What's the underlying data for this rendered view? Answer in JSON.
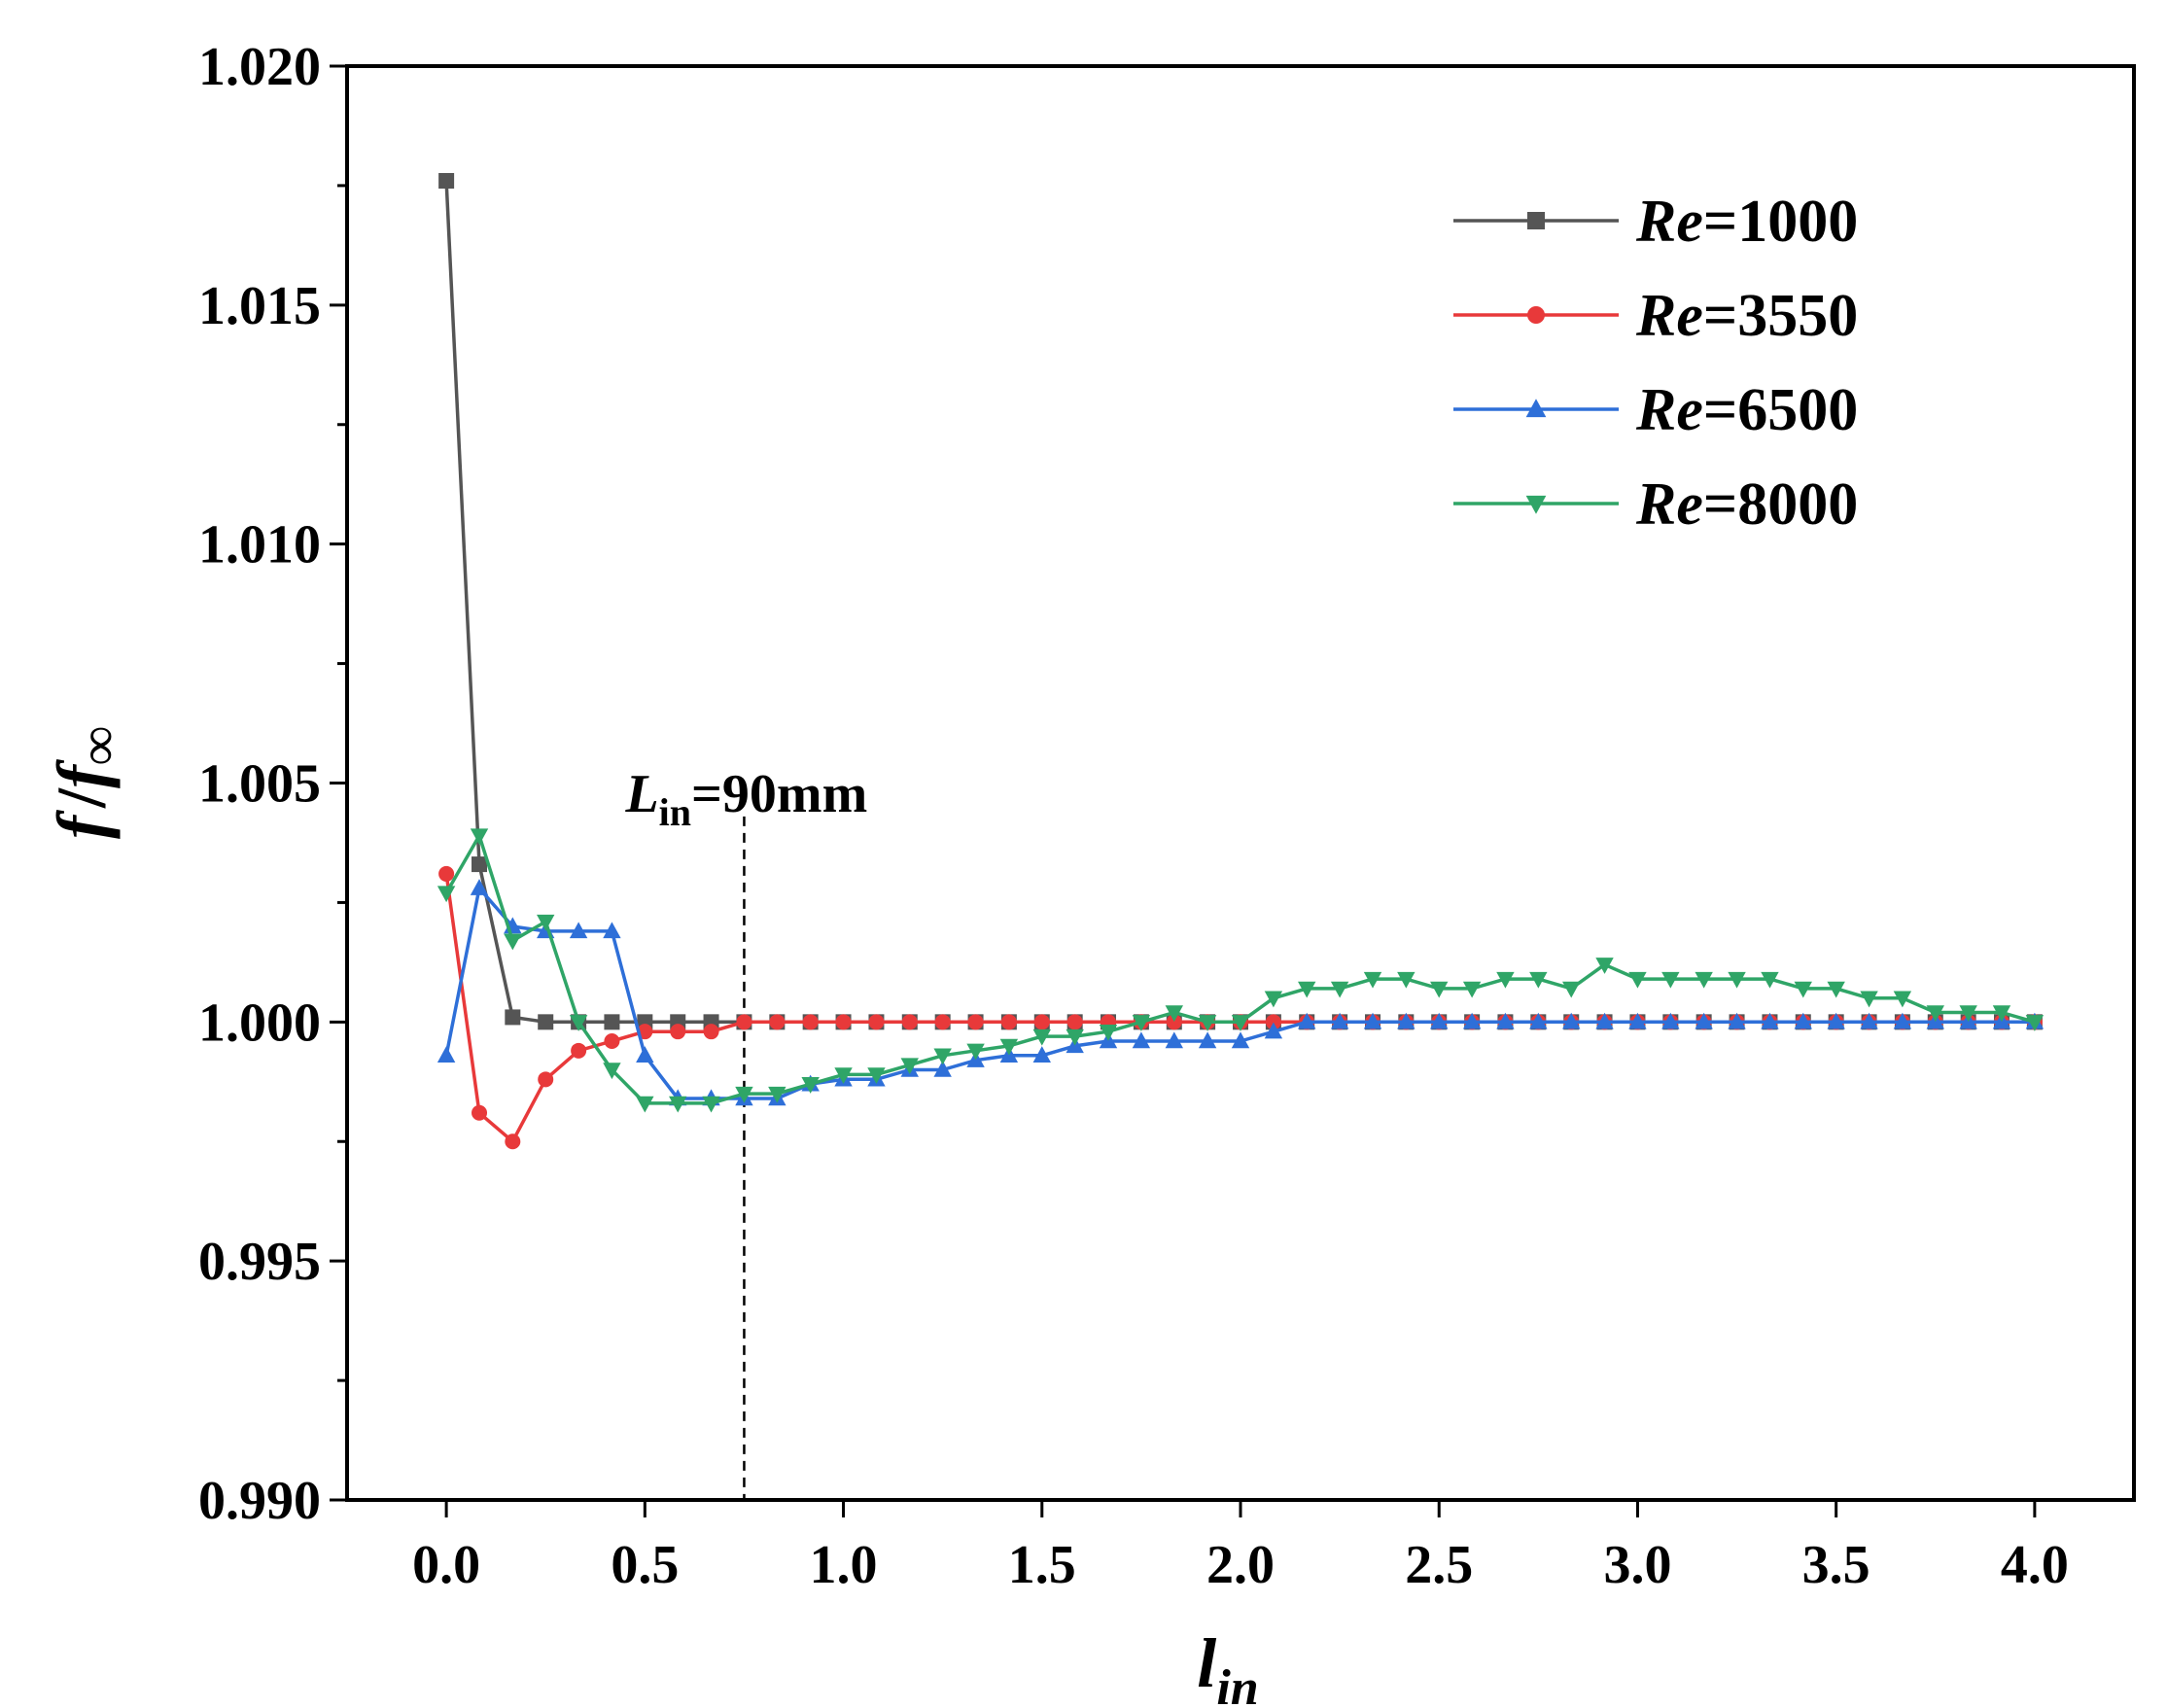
{
  "chart_data": {
    "type": "line",
    "xlabel": "l",
    "xlabel_sub": "in",
    "ylabel_f": "f",
    "ylabel_slash": "/",
    "ylabel_finf": "f",
    "ylabel_inf": "∞",
    "xlim": [
      -0.25,
      4.25
    ],
    "ylim": [
      0.99,
      1.02
    ],
    "x_ticks": [
      0.0,
      0.5,
      1.0,
      1.5,
      2.0,
      2.5,
      3.0,
      3.5,
      4.0
    ],
    "x_tick_labels": [
      "0.0",
      "0.5",
      "1.0",
      "1.5",
      "2.0",
      "2.5",
      "3.0",
      "3.5",
      "4.0"
    ],
    "y_ticks": [
      0.99,
      0.995,
      1.0,
      1.005,
      1.01,
      1.015,
      1.02
    ],
    "y_tick_labels": [
      "0.990",
      "0.995",
      "1.000",
      "1.005",
      "1.010",
      "1.015",
      "1.020"
    ],
    "y_minor_ticks": [
      0.9925,
      0.9975,
      1.0025,
      1.0075,
      1.0125,
      1.0175
    ],
    "legend_position": "top-right",
    "annotation": {
      "L": "L",
      "sub": "in",
      "rest": "=90mm",
      "x": 0.75
    },
    "series": [
      {
        "name": "Re=1000",
        "name_italic": "Re",
        "name_rest": "=1000",
        "color": "#555555",
        "marker": "square",
        "x": [
          0,
          0.083,
          0.167,
          0.25,
          0.333,
          0.417,
          0.5,
          0.583,
          0.667,
          0.75,
          0.833,
          0.917,
          1.0,
          1.083,
          1.167,
          1.25,
          1.333,
          1.417,
          1.5,
          1.583,
          1.667,
          1.75,
          1.833,
          1.917,
          2.0,
          2.083,
          2.167,
          2.25,
          2.333,
          2.417,
          2.5,
          2.583,
          2.667,
          2.75,
          2.833,
          2.917,
          3.0,
          3.083,
          3.167,
          3.25,
          3.333,
          3.417,
          3.5,
          3.583,
          3.667,
          3.75,
          3.833,
          3.917,
          4.0
        ],
        "y": [
          1.0176,
          1.0033,
          1.0001,
          1.0,
          1.0,
          1.0,
          1.0,
          1.0,
          1.0,
          1.0,
          1.0,
          1.0,
          1.0,
          1.0,
          1.0,
          1.0,
          1.0,
          1.0,
          1.0,
          1.0,
          1.0,
          1.0,
          1.0,
          1.0,
          1.0,
          1.0,
          1.0,
          1.0,
          1.0,
          1.0,
          1.0,
          1.0,
          1.0,
          1.0,
          1.0,
          1.0,
          1.0,
          1.0,
          1.0,
          1.0,
          1.0,
          1.0,
          1.0,
          1.0,
          1.0,
          1.0,
          1.0,
          1.0,
          1.0
        ]
      },
      {
        "name": "Re=3550",
        "name_italic": "Re",
        "name_rest": "=3550",
        "color": "#e8393a",
        "marker": "circle",
        "x": [
          0,
          0.083,
          0.167,
          0.25,
          0.333,
          0.417,
          0.5,
          0.583,
          0.667,
          0.75,
          0.833,
          0.917,
          1.0,
          1.083,
          1.167,
          1.25,
          1.333,
          1.417,
          1.5,
          1.583,
          1.667,
          1.75,
          1.833,
          1.917,
          2.0,
          2.083,
          2.167,
          2.25,
          2.333,
          2.417,
          2.5,
          2.583,
          2.667,
          2.75,
          2.833,
          2.917,
          3.0,
          3.083,
          3.167,
          3.25,
          3.333,
          3.417,
          3.5,
          3.583,
          3.667,
          3.75,
          3.833,
          3.917,
          4.0
        ],
        "y": [
          1.0031,
          0.9981,
          0.9975,
          0.9988,
          0.9994,
          0.9996,
          0.9998,
          0.9998,
          0.9998,
          1.0,
          1.0,
          1.0,
          1.0,
          1.0,
          1.0,
          1.0,
          1.0,
          1.0,
          1.0,
          1.0,
          1.0,
          1.0,
          1.0,
          1.0,
          1.0,
          1.0,
          1.0,
          1.0,
          1.0,
          1.0,
          1.0,
          1.0,
          1.0,
          1.0,
          1.0,
          1.0,
          1.0,
          1.0,
          1.0,
          1.0,
          1.0,
          1.0,
          1.0,
          1.0,
          1.0,
          1.0,
          1.0,
          1.0,
          1.0
        ]
      },
      {
        "name": "Re=6500",
        "name_italic": "Re",
        "name_rest": "=6500",
        "color": "#2e6fd8",
        "marker": "triangle-up",
        "x": [
          0,
          0.083,
          0.167,
          0.25,
          0.333,
          0.417,
          0.5,
          0.583,
          0.667,
          0.75,
          0.833,
          0.917,
          1.0,
          1.083,
          1.167,
          1.25,
          1.333,
          1.417,
          1.5,
          1.583,
          1.667,
          1.75,
          1.833,
          1.917,
          2.0,
          2.083,
          2.167,
          2.25,
          2.333,
          2.417,
          2.5,
          2.583,
          2.667,
          2.75,
          2.833,
          2.917,
          3.0,
          3.083,
          3.167,
          3.25,
          3.333,
          3.417,
          3.5,
          3.583,
          3.667,
          3.75,
          3.833,
          3.917,
          4.0
        ],
        "y": [
          0.9993,
          1.0028,
          1.002,
          1.0019,
          1.0019,
          1.0019,
          0.9993,
          0.9984,
          0.9984,
          0.9984,
          0.9984,
          0.9987,
          0.9988,
          0.9988,
          0.999,
          0.999,
          0.9992,
          0.9993,
          0.9993,
          0.9995,
          0.9996,
          0.9996,
          0.9996,
          0.9996,
          0.9996,
          0.9998,
          1.0,
          1.0,
          1.0,
          1.0,
          1.0,
          1.0,
          1.0,
          1.0,
          1.0,
          1.0,
          1.0,
          1.0,
          1.0,
          1.0,
          1.0,
          1.0,
          1.0,
          1.0,
          1.0,
          1.0,
          1.0,
          1.0,
          1.0
        ]
      },
      {
        "name": "Re=8000",
        "name_italic": "Re",
        "name_rest": "=8000",
        "color": "#2fa567",
        "marker": "triangle-down",
        "x": [
          0,
          0.083,
          0.167,
          0.25,
          0.333,
          0.417,
          0.5,
          0.583,
          0.667,
          0.75,
          0.833,
          0.917,
          1.0,
          1.083,
          1.167,
          1.25,
          1.333,
          1.417,
          1.5,
          1.583,
          1.667,
          1.75,
          1.833,
          1.917,
          2.0,
          2.083,
          2.167,
          2.25,
          2.333,
          2.417,
          2.5,
          2.583,
          2.667,
          2.75,
          2.833,
          2.917,
          3.0,
          3.083,
          3.167,
          3.25,
          3.333,
          3.417,
          3.5,
          3.583,
          3.667,
          3.75,
          3.833,
          3.917,
          4.0
        ],
        "y": [
          1.0027,
          1.0039,
          1.0017,
          1.0021,
          1.0,
          0.999,
          0.9983,
          0.9983,
          0.9983,
          0.9985,
          0.9985,
          0.9987,
          0.9989,
          0.9989,
          0.9991,
          0.9993,
          0.9994,
          0.9995,
          0.9997,
          0.9997,
          0.9998,
          1.0,
          1.0002,
          1.0,
          1.0,
          1.0005,
          1.0007,
          1.0007,
          1.0009,
          1.0009,
          1.0007,
          1.0007,
          1.0009,
          1.0009,
          1.0007,
          1.0012,
          1.0009,
          1.0009,
          1.0009,
          1.0009,
          1.0009,
          1.0007,
          1.0007,
          1.0005,
          1.0005,
          1.0002,
          1.0002,
          1.0002,
          1.0
        ]
      }
    ]
  }
}
